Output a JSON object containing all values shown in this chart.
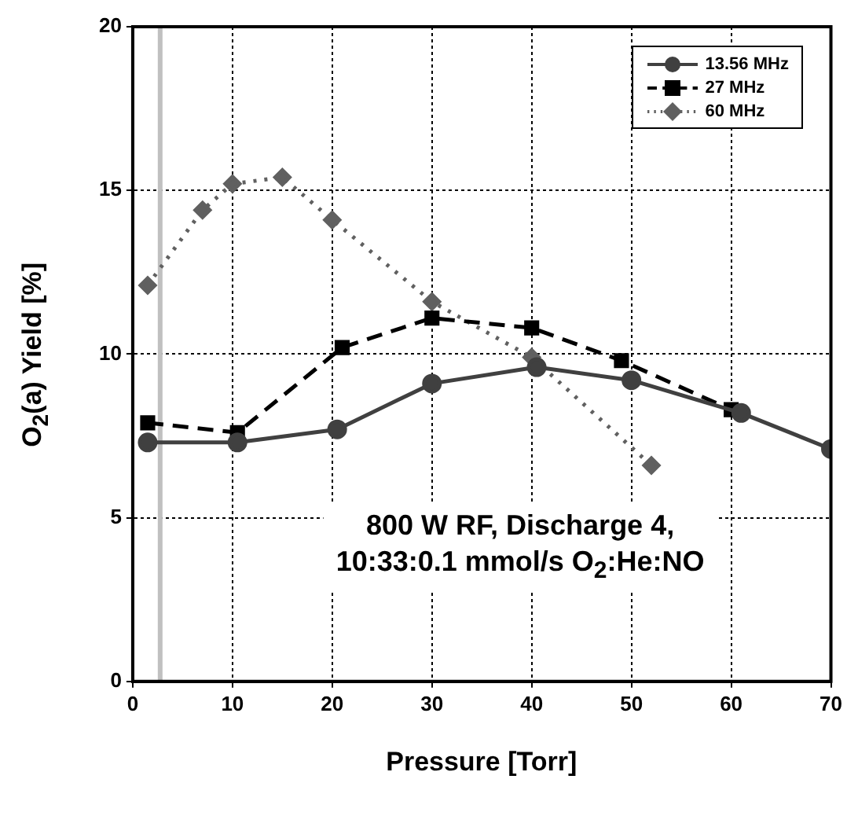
{
  "chart_data": {
    "type": "line",
    "xlabel": "Pressure [Torr]",
    "ylabel": "O$_{2}$(a) Yield [%]",
    "xlim": [
      0,
      70
    ],
    "xticks": [
      0,
      10,
      20,
      30,
      40,
      50,
      60,
      70
    ],
    "ylim": [
      0,
      20
    ],
    "yticks": [
      0,
      5,
      10,
      15,
      20
    ],
    "grid": true,
    "legend": "top right",
    "annotations": [
      "800 W RF, Discharge 4,\n10:33:0.1 mmol/s O$_{2}$:He:NO"
    ],
    "ref_lines": [
      {
        "axis": "x",
        "value": 2.75,
        "color": "#c0c0c0"
      }
    ],
    "series": [
      {
        "name": "13.56 MHz",
        "color": "#404040",
        "marker": "circle",
        "line_style": "solid",
        "x": [
          1.5,
          10.5,
          20.5,
          30,
          40.5,
          50,
          61,
          70
        ],
        "values": [
          7.3,
          7.3,
          7.7,
          9.1,
          9.6,
          9.2,
          8.2,
          7.1
        ]
      },
      {
        "name": "27 MHz",
        "color": "#000000",
        "marker": "square",
        "line_style": "dashed",
        "x": [
          1.5,
          10.5,
          21,
          30,
          40,
          49,
          60
        ],
        "values": [
          7.9,
          7.6,
          10.2,
          11.1,
          10.8,
          9.8,
          8.3
        ]
      },
      {
        "name": "60 MHz",
        "color": "#606060",
        "marker": "diamond",
        "line_style": "dotted",
        "x": [
          1.5,
          7,
          10,
          15,
          20,
          30,
          40,
          52
        ],
        "values": [
          12.1,
          14.4,
          15.2,
          15.4,
          14.1,
          11.6,
          9.9,
          6.6
        ]
      }
    ]
  }
}
